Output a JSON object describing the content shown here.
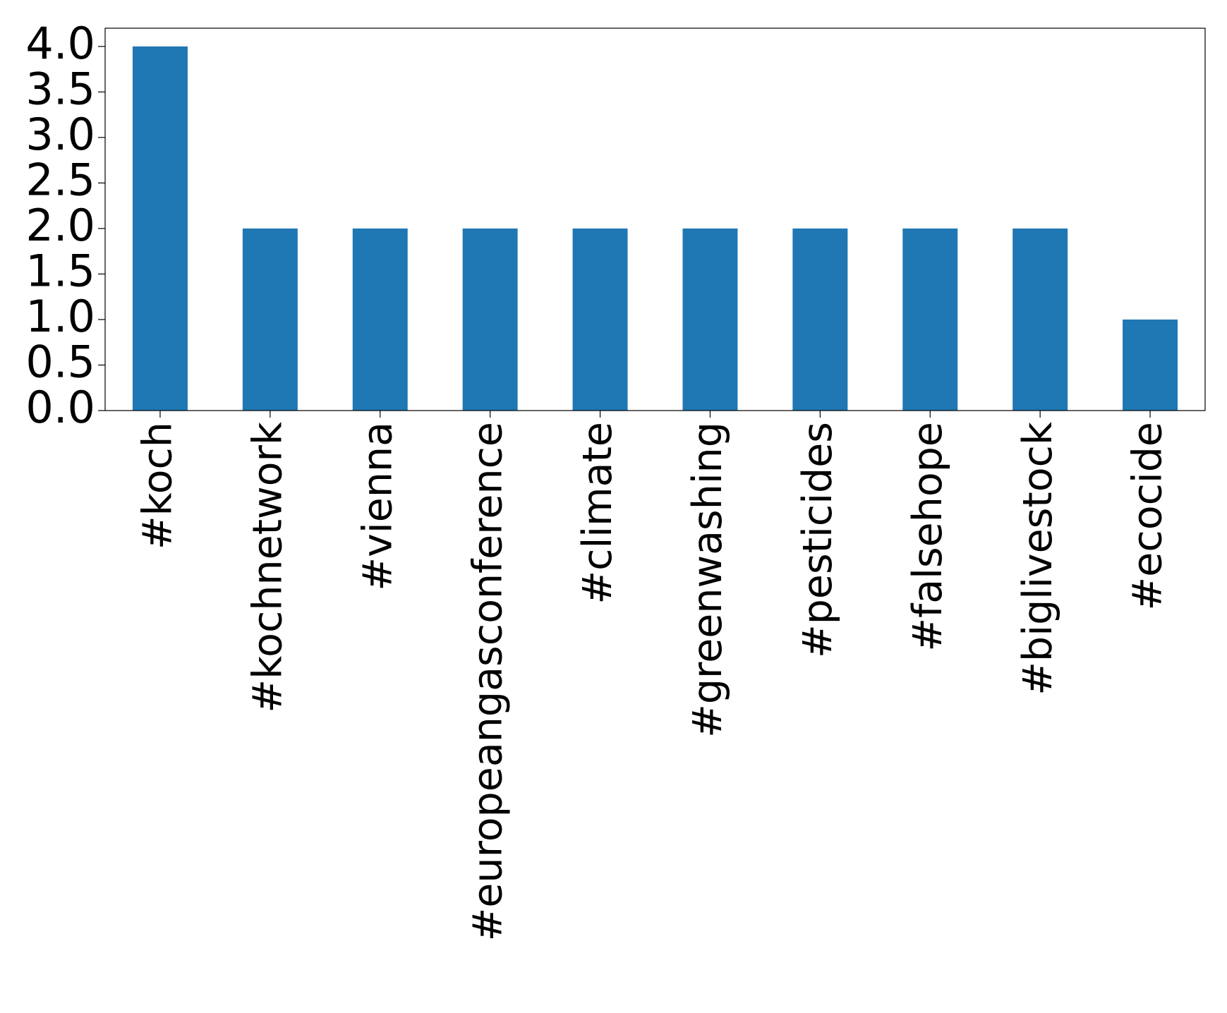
{
  "chart_data": {
    "type": "bar",
    "categories": [
      "#koch",
      "#kochnetwork",
      "#vienna",
      "#europeangasconference",
      "#climate",
      "#greenwashing",
      "#pesticides",
      "#falsehope",
      "#biglivestock",
      "#ecocide"
    ],
    "values": [
      4,
      2,
      2,
      2,
      2,
      2,
      2,
      2,
      2,
      1
    ],
    "color": "#1f77b4",
    "ylim": [
      0,
      4.2
    ],
    "yticks": [
      {
        "value": 0,
        "label": "0.0"
      },
      {
        "value": 0.5,
        "label": "0.5"
      },
      {
        "value": 1,
        "label": "1.0"
      },
      {
        "value": 1.5,
        "label": "1.5"
      },
      {
        "value": 2,
        "label": "2.0"
      },
      {
        "value": 2.5,
        "label": "2.5"
      },
      {
        "value": 3,
        "label": "3.0"
      },
      {
        "value": 3.5,
        "label": "3.5"
      },
      {
        "value": 4,
        "label": "4.0"
      }
    ],
    "grid": false
  }
}
